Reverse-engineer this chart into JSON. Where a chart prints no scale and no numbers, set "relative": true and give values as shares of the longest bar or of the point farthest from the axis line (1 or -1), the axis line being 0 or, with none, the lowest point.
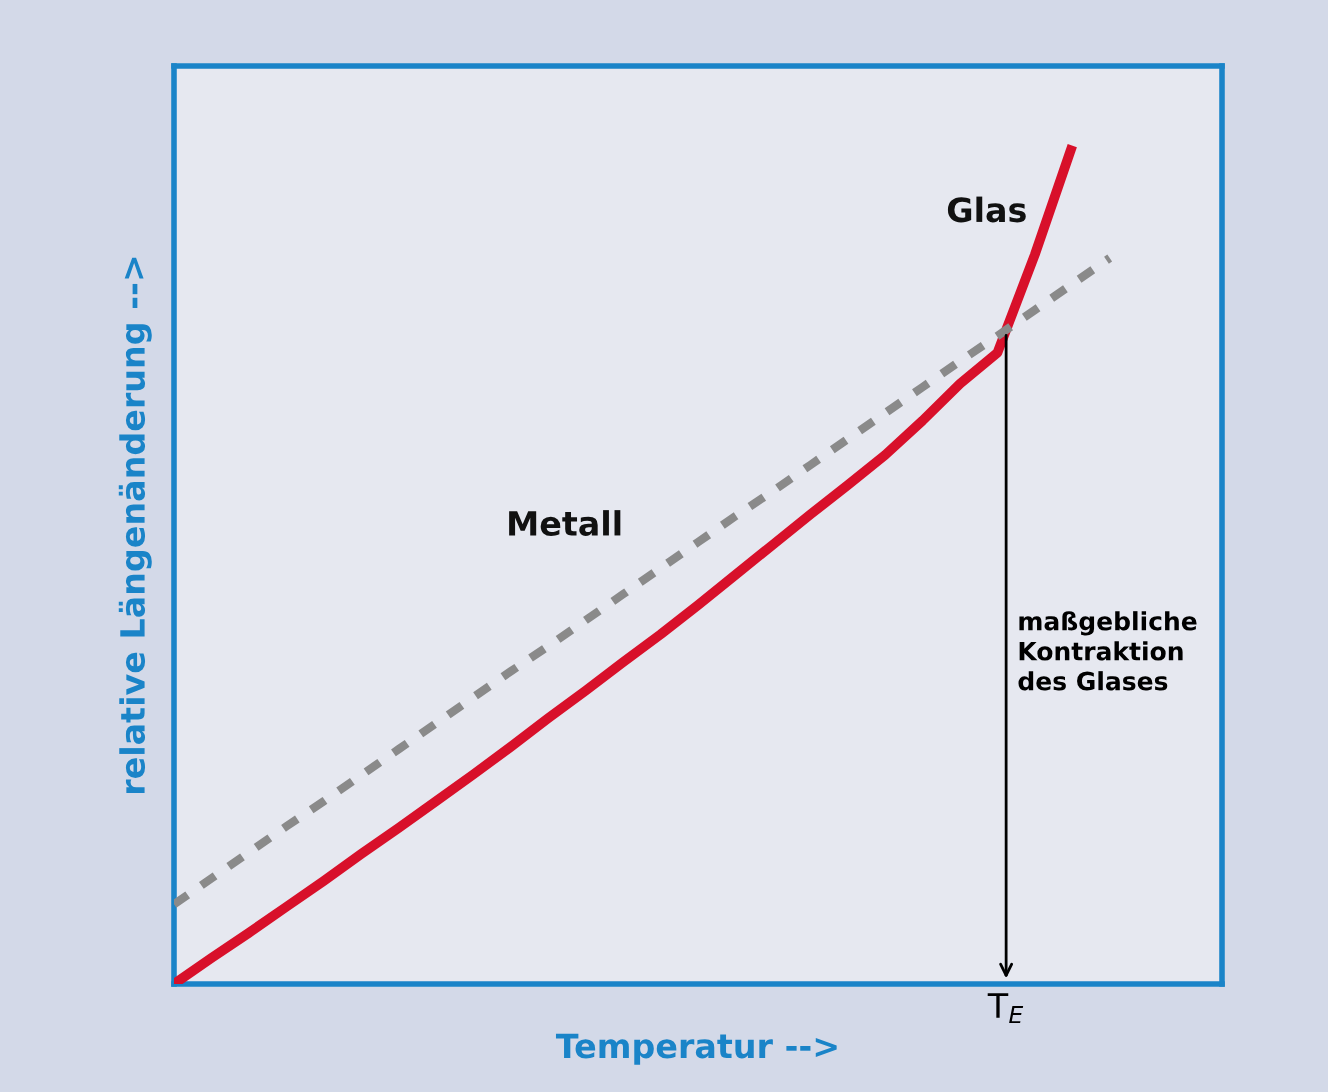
{
  "chart_data": {
    "type": "line",
    "relative": true,
    "xlabel": "Temperatur -->",
    "ylabel": "relative Längenänderung -->",
    "categories": [
      null,
      null,
      null,
      null,
      null,
      null,
      null,
      null,
      null,
      null,
      null,
      null,
      null,
      null,
      null,
      null,
      null,
      null,
      null,
      null,
      null,
      null,
      null,
      null,
      null,
      null
    ],
    "series": [
      {
        "name": "Glas",
        "color": "#d8102a",
        "line_style": "solid",
        "values": [
          0,
          0.031,
          0.061,
          0.092,
          0.123,
          0.155,
          0.186,
          0.218,
          0.25,
          0.283,
          0.317,
          0.35,
          0.384,
          0.417,
          0.452,
          0.488,
          0.524,
          0.56,
          0.595,
          0.631,
          0.672,
          0.716,
          0.753,
          0.87,
          1,
          null
        ]
      },
      {
        "name": "Metall",
        "color": "#8a8a8a",
        "line_style": "dotted",
        "values": [
          0.095,
          0.126,
          0.157,
          0.188,
          0.218,
          0.249,
          0.28,
          0.311,
          0.342,
          0.373,
          0.403,
          0.434,
          0.465,
          0.496,
          0.527,
          0.558,
          0.588,
          0.619,
          0.65,
          0.681,
          0.712,
          0.743,
          0.773,
          0.804,
          0.835,
          0.866
        ]
      }
    ],
    "annotations": [
      "maßgebliche\nKontraktion\ndes Glases",
      "T$_{E}$"
    ]
  }
}
